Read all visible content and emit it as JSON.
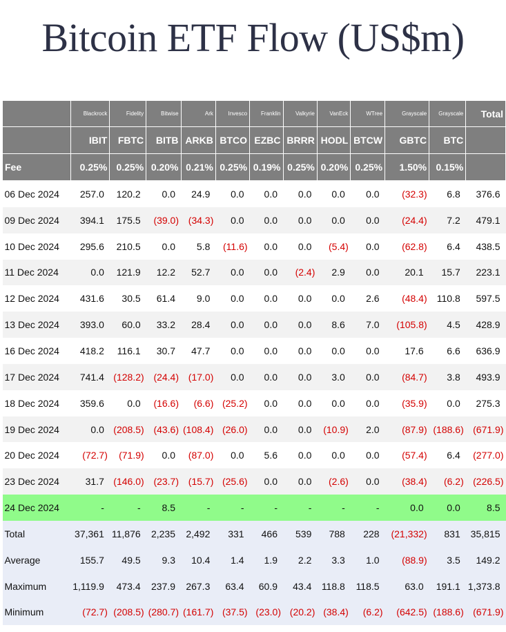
{
  "title": "Bitcoin ETF Flow (US$m)",
  "colors": {
    "header_bg": "#7f7f7f",
    "highlight_row": "#90fb8a",
    "stats_bg": "#e9edf7",
    "negative": "#d40000"
  },
  "columns": [
    {
      "issuer": "Blackrock",
      "ticker": "IBIT",
      "fee": "0.25%"
    },
    {
      "issuer": "Fidelity",
      "ticker": "FBTC",
      "fee": "0.25%"
    },
    {
      "issuer": "Bitwise",
      "ticker": "BITB",
      "fee": "0.20%"
    },
    {
      "issuer": "Ark",
      "ticker": "ARKB",
      "fee": "0.21%"
    },
    {
      "issuer": "Invesco",
      "ticker": "BTCO",
      "fee": "0.25%"
    },
    {
      "issuer": "Franklin",
      "ticker": "EZBC",
      "fee": "0.19%"
    },
    {
      "issuer": "Valkyrie",
      "ticker": "BRRR",
      "fee": "0.25%"
    },
    {
      "issuer": "VanEck",
      "ticker": "HODL",
      "fee": "0.20%"
    },
    {
      "issuer": "WTree",
      "ticker": "BTCW",
      "fee": "0.25%"
    },
    {
      "issuer": "Grayscale",
      "ticker": "GBTC",
      "fee": "1.50%"
    },
    {
      "issuer": "Grayscale",
      "ticker": "BTC",
      "fee": "0.15%"
    }
  ],
  "total_label": "Total",
  "fee_label": "Fee",
  "rows": [
    {
      "date": "06 Dec 2024",
      "values": [
        "257.0",
        "120.2",
        "0.0",
        "24.9",
        "0.0",
        "0.0",
        "0.0",
        "0.0",
        "0.0",
        "(32.3)",
        "6.8"
      ],
      "total": "376.6"
    },
    {
      "date": "09 Dec 2024",
      "values": [
        "394.1",
        "175.5",
        "(39.0)",
        "(34.3)",
        "0.0",
        "0.0",
        "0.0",
        "0.0",
        "0.0",
        "(24.4)",
        "7.2"
      ],
      "total": "479.1"
    },
    {
      "date": "10 Dec 2024",
      "values": [
        "295.6",
        "210.5",
        "0.0",
        "5.8",
        "(11.6)",
        "0.0",
        "0.0",
        "(5.4)",
        "0.0",
        "(62.8)",
        "6.4"
      ],
      "total": "438.5"
    },
    {
      "date": "11 Dec 2024",
      "values": [
        "0.0",
        "121.9",
        "12.2",
        "52.7",
        "0.0",
        "0.0",
        "(2.4)",
        "2.9",
        "0.0",
        "20.1",
        "15.7"
      ],
      "total": "223.1"
    },
    {
      "date": "12 Dec 2024",
      "values": [
        "431.6",
        "30.5",
        "61.4",
        "9.0",
        "0.0",
        "0.0",
        "0.0",
        "0.0",
        "2.6",
        "(48.4)",
        "110.8"
      ],
      "total": "597.5"
    },
    {
      "date": "13 Dec 2024",
      "values": [
        "393.0",
        "60.0",
        "33.2",
        "28.4",
        "0.0",
        "0.0",
        "0.0",
        "8.6",
        "7.0",
        "(105.8)",
        "4.5"
      ],
      "total": "428.9"
    },
    {
      "date": "16 Dec 2024",
      "values": [
        "418.2",
        "116.1",
        "30.7",
        "47.7",
        "0.0",
        "0.0",
        "0.0",
        "0.0",
        "0.0",
        "17.6",
        "6.6"
      ],
      "total": "636.9"
    },
    {
      "date": "17 Dec 2024",
      "values": [
        "741.4",
        "(128.2)",
        "(24.4)",
        "(17.0)",
        "0.0",
        "0.0",
        "0.0",
        "3.0",
        "0.0",
        "(84.7)",
        "3.8"
      ],
      "total": "493.9"
    },
    {
      "date": "18 Dec 2024",
      "values": [
        "359.6",
        "0.0",
        "(16.6)",
        "(6.6)",
        "(25.2)",
        "0.0",
        "0.0",
        "0.0",
        "0.0",
        "(35.9)",
        "0.0"
      ],
      "total": "275.3"
    },
    {
      "date": "19 Dec 2024",
      "values": [
        "0.0",
        "(208.5)",
        "(43.6)",
        "(108.4)",
        "(26.0)",
        "0.0",
        "0.0",
        "(10.9)",
        "2.0",
        "(87.9)",
        "(188.6)"
      ],
      "total": "(671.9)"
    },
    {
      "date": "20 Dec 2024",
      "values": [
        "(72.7)",
        "(71.9)",
        "0.0",
        "(87.0)",
        "0.0",
        "5.6",
        "0.0",
        "0.0",
        "0.0",
        "(57.4)",
        "6.4"
      ],
      "total": "(277.0)"
    },
    {
      "date": "23 Dec 2024",
      "values": [
        "31.7",
        "(146.0)",
        "(23.7)",
        "(15.7)",
        "(25.6)",
        "0.0",
        "0.0",
        "(2.6)",
        "0.0",
        "(38.4)",
        "(6.2)"
      ],
      "total": "(226.5)"
    },
    {
      "date": "24 Dec 2024",
      "values": [
        "-",
        "-",
        "8.5",
        "-",
        "-",
        "-",
        "-",
        "-",
        "-",
        "0.0",
        "0.0"
      ],
      "total": "8.5",
      "highlight": true
    }
  ],
  "stats": [
    {
      "label": "Total",
      "values": [
        "37,361",
        "11,876",
        "2,235",
        "2,492",
        "331",
        "466",
        "539",
        "788",
        "228",
        "(21,332)",
        "831"
      ],
      "total": "35,815"
    },
    {
      "label": "Average",
      "values": [
        "155.7",
        "49.5",
        "9.3",
        "10.4",
        "1.4",
        "1.9",
        "2.2",
        "3.3",
        "1.0",
        "(88.9)",
        "3.5"
      ],
      "total": "149.2"
    },
    {
      "label": "Maximum",
      "values": [
        "1,119.9",
        "473.4",
        "237.9",
        "267.3",
        "63.4",
        "60.9",
        "43.4",
        "118.8",
        "118.5",
        "63.0",
        "191.1"
      ],
      "total": "1,373.8"
    },
    {
      "label": "Minimum",
      "values": [
        "(72.7)",
        "(208.5)",
        "(280.7)",
        "(161.7)",
        "(37.5)",
        "(23.0)",
        "(20.2)",
        "(38.4)",
        "(6.2)",
        "(642.5)",
        "(188.6)"
      ],
      "total": "(671.9)"
    }
  ]
}
